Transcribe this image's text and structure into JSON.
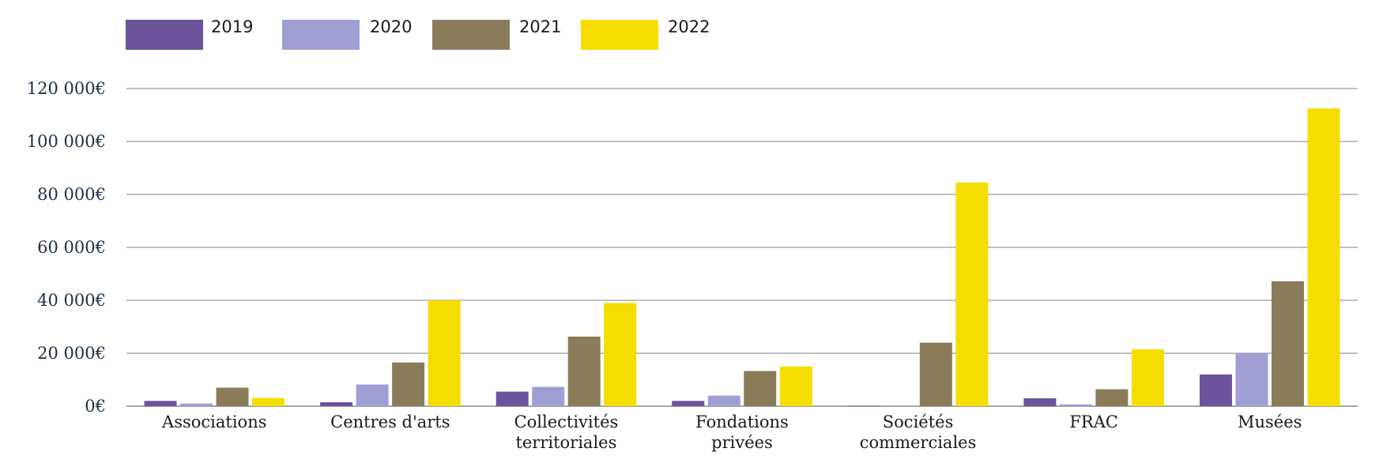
{
  "chart_data": {
    "type": "bar",
    "categories": [
      [
        "Associations"
      ],
      [
        "Centres d'arts"
      ],
      [
        "Collectivités",
        "territoriales"
      ],
      [
        "Fondations",
        "privées"
      ],
      [
        "Sociétés",
        "commerciales"
      ],
      [
        "FRAC"
      ],
      [
        "Musées"
      ]
    ],
    "series": [
      {
        "name": "2019",
        "color": "#6b5499",
        "values": [
          2000,
          1500,
          5500,
          2000,
          200,
          3000,
          12000
        ]
      },
      {
        "name": "2020",
        "color": "#9f9fd4",
        "values": [
          1000,
          8200,
          7300,
          4000,
          0,
          700,
          20000
        ]
      },
      {
        "name": "2021",
        "color": "#8b7c59",
        "values": [
          7000,
          16500,
          26300,
          13300,
          24000,
          6400,
          47200
        ]
      },
      {
        "name": "2022",
        "color": "#f5dd00",
        "values": [
          3100,
          40000,
          39000,
          15000,
          84500,
          21500,
          112500
        ]
      }
    ],
    "ylim": [
      0,
      120000
    ],
    "yticks": [
      0,
      20000,
      40000,
      60000,
      80000,
      100000,
      120000
    ],
    "ytick_labels": [
      "0€",
      "20 000€",
      "40 000€",
      "60 000€",
      "80 000€",
      "100 000€",
      "120 000€"
    ],
    "title": "",
    "xlabel": "",
    "ylabel": "",
    "grid": true,
    "legend_position": "top-left"
  }
}
